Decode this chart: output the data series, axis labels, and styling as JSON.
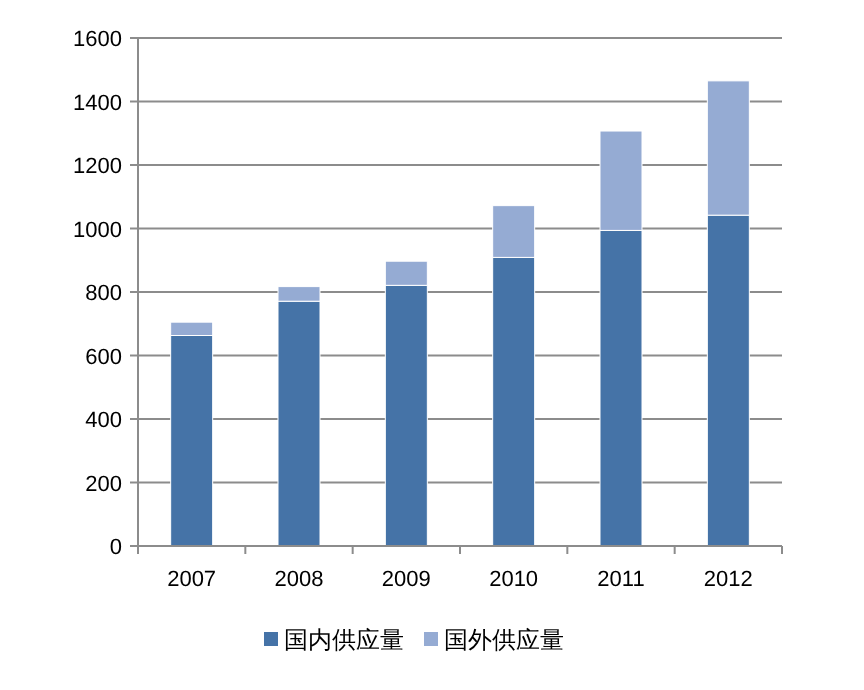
{
  "chart_data": {
    "type": "bar",
    "stacked": true,
    "categories": [
      "2007",
      "2008",
      "2009",
      "2010",
      "2011",
      "2012"
    ],
    "series": [
      {
        "name": "国内供应量",
        "color": "#4573a7",
        "values": [
          663,
          771,
          821,
          909,
          994,
          1042
        ]
      },
      {
        "name": "国外供应量",
        "color": "#95abd3",
        "values": [
          42,
          46,
          76,
          163,
          313,
          423
        ]
      }
    ],
    "ylim": [
      0,
      1600
    ],
    "yticks": [
      0,
      200,
      400,
      600,
      800,
      1000,
      1200,
      1400,
      1600
    ],
    "grid": "y",
    "legend": "bottom"
  }
}
